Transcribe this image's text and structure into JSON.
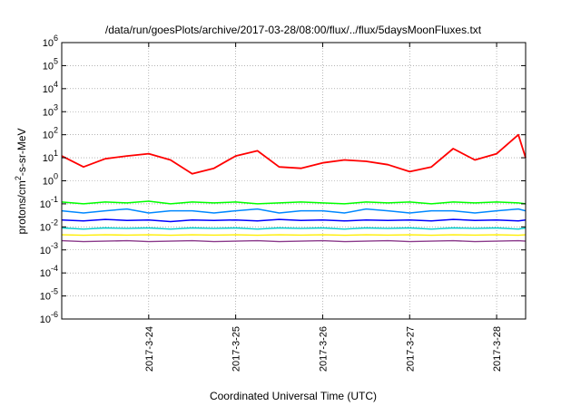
{
  "chart_data": {
    "type": "line",
    "title": "/data/run/goesPlots/archive/2017-03-28/08:00/flux/../flux/5daysMoonFluxes.txt",
    "xlabel": "Coordinated Universal Time (UTC)",
    "ylabel": "protons/cm²-s-sr-MeV",
    "y_scale": "log",
    "ylim": [
      1e-06,
      1000000.0
    ],
    "yticks": [
      {
        "v": 1e-06,
        "m": "10",
        "e": "-6"
      },
      {
        "v": 1e-05,
        "m": "10",
        "e": "-5"
      },
      {
        "v": 0.0001,
        "m": "10",
        "e": "-4"
      },
      {
        "v": 0.001,
        "m": "10",
        "e": "-3"
      },
      {
        "v": 0.01,
        "m": "10",
        "e": "-2"
      },
      {
        "v": 0.1,
        "m": "10",
        "e": "-1"
      },
      {
        "v": 1,
        "m": "10",
        "e": "0"
      },
      {
        "v": 10,
        "m": "10",
        "e": "1"
      },
      {
        "v": 100,
        "m": "10",
        "e": "2"
      },
      {
        "v": 1000,
        "m": "10",
        "e": "3"
      },
      {
        "v": 10000,
        "m": "10",
        "e": "4"
      },
      {
        "v": 100000,
        "m": "10",
        "e": "5"
      },
      {
        "v": 1000000,
        "m": "10",
        "e": "6"
      }
    ],
    "xlim": [
      "2017-03-23 00:00",
      "2017-03-28 08:00"
    ],
    "xtick_dates": [
      "2017-03-24",
      "2017-03-25",
      "2017-03-26",
      "2017-03-27",
      "2017-03-28"
    ],
    "xtick_labels": [
      "2017-3-24",
      "2017-3-25",
      "2017-3-26",
      "2017-3-27",
      "2017-3-28"
    ],
    "grid": true,
    "legend": "none",
    "x": [
      "2017-03-23 00:00",
      "2017-03-23 06:00",
      "2017-03-23 12:00",
      "2017-03-23 18:00",
      "2017-03-24 00:00",
      "2017-03-24 06:00",
      "2017-03-24 12:00",
      "2017-03-24 18:00",
      "2017-03-25 00:00",
      "2017-03-25 06:00",
      "2017-03-25 12:00",
      "2017-03-25 18:00",
      "2017-03-26 00:00",
      "2017-03-26 06:00",
      "2017-03-26 12:00",
      "2017-03-26 18:00",
      "2017-03-27 00:00",
      "2017-03-27 06:00",
      "2017-03-27 12:00",
      "2017-03-27 18:00",
      "2017-03-28 00:00",
      "2017-03-28 06:00",
      "2017-03-28 08:00"
    ],
    "series": [
      {
        "color": "#ff0000",
        "width": 1.8,
        "values": [
          12,
          4,
          9,
          12,
          15,
          8,
          2,
          3.5,
          12,
          20,
          4,
          3.5,
          6,
          8,
          7,
          5,
          2.5,
          4,
          25,
          8,
          15,
          100,
          10
        ]
      },
      {
        "color": "#00ff00",
        "width": 1.5,
        "values": [
          0.12,
          0.1,
          0.12,
          0.11,
          0.13,
          0.1,
          0.12,
          0.11,
          0.12,
          0.1,
          0.11,
          0.12,
          0.11,
          0.1,
          0.12,
          0.11,
          0.12,
          0.1,
          0.12,
          0.11,
          0.12,
          0.11,
          0.1
        ]
      },
      {
        "color": "#0088ff",
        "width": 1.5,
        "values": [
          0.05,
          0.04,
          0.05,
          0.06,
          0.04,
          0.05,
          0.05,
          0.04,
          0.05,
          0.06,
          0.04,
          0.05,
          0.05,
          0.04,
          0.06,
          0.05,
          0.04,
          0.05,
          0.05,
          0.04,
          0.05,
          0.06,
          0.05
        ]
      },
      {
        "color": "#0000ff",
        "width": 1.5,
        "values": [
          0.02,
          0.018,
          0.021,
          0.019,
          0.02,
          0.017,
          0.02,
          0.019,
          0.02,
          0.018,
          0.021,
          0.019,
          0.02,
          0.018,
          0.02,
          0.019,
          0.02,
          0.018,
          0.021,
          0.019,
          0.02,
          0.018,
          0.02
        ]
      },
      {
        "color": "#00cccc",
        "width": 1.4,
        "values": [
          0.009,
          0.008,
          0.009,
          0.0085,
          0.009,
          0.008,
          0.009,
          0.0085,
          0.009,
          0.008,
          0.009,
          0.0085,
          0.009,
          0.008,
          0.009,
          0.0085,
          0.009,
          0.008,
          0.009,
          0.0085,
          0.009,
          0.008,
          0.009
        ]
      },
      {
        "color": "#ffee00",
        "width": 1.4,
        "values": [
          0.0045,
          0.0043,
          0.0045,
          0.0044,
          0.0045,
          0.0043,
          0.0045,
          0.0044,
          0.0045,
          0.0043,
          0.0045,
          0.0044,
          0.0045,
          0.0043,
          0.0045,
          0.0044,
          0.0045,
          0.0043,
          0.0045,
          0.0044,
          0.0045,
          0.0043,
          0.0045
        ]
      },
      {
        "color": "#8b3a8b",
        "width": 1.4,
        "values": [
          0.0025,
          0.0023,
          0.0024,
          0.0025,
          0.0023,
          0.0024,
          0.0025,
          0.0023,
          0.0024,
          0.0025,
          0.0023,
          0.0024,
          0.0025,
          0.0023,
          0.0024,
          0.0025,
          0.0023,
          0.0024,
          0.0025,
          0.0023,
          0.0024,
          0.0025,
          0.0024
        ]
      }
    ]
  }
}
